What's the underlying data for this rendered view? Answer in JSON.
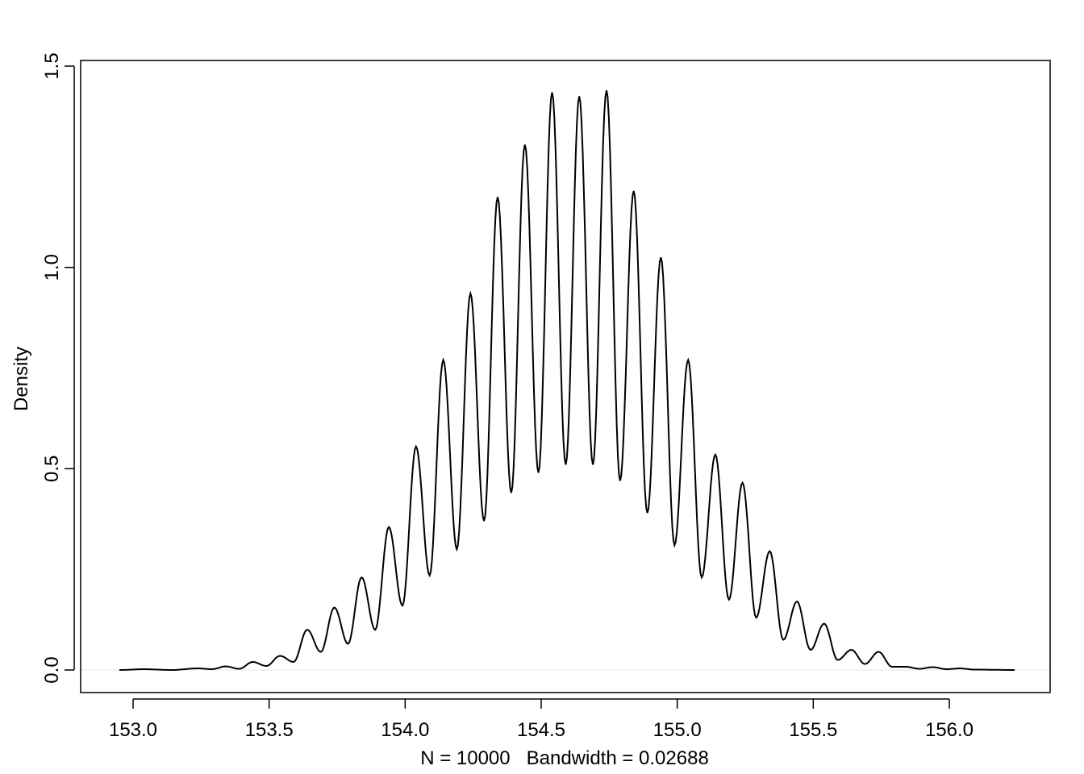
{
  "chart_data": {
    "type": "line",
    "title": "",
    "xlabel": "N = 10000   Bandwidth = 0.02688",
    "ylabel": "Density",
    "xlim": [
      152.85,
      156.35
    ],
    "ylim": [
      -0.06,
      1.52
    ],
    "x_ticks": [
      "153.0",
      "153.5",
      "154.0",
      "154.5",
      "155.0",
      "155.5",
      "156.0"
    ],
    "y_ticks": [
      "0.0",
      "0.5",
      "1.0",
      "1.5"
    ],
    "zero_line": true,
    "grid": false,
    "line_color": "#000000",
    "zero_line_color": "#e6e6e6",
    "series": [
      {
        "points": [
          [
            152.95,
            0.0
          ],
          [
            153.04,
            0.002
          ],
          [
            153.14,
            0.0
          ],
          [
            153.24,
            0.004
          ],
          [
            153.29,
            0.002
          ],
          [
            153.34,
            0.009
          ],
          [
            153.39,
            0.003
          ],
          [
            153.44,
            0.02
          ],
          [
            153.49,
            0.01
          ],
          [
            153.54,
            0.035
          ],
          [
            153.59,
            0.02
          ],
          [
            153.64,
            0.1
          ],
          [
            153.69,
            0.045
          ],
          [
            153.74,
            0.155
          ],
          [
            153.79,
            0.065
          ],
          [
            153.84,
            0.23
          ],
          [
            153.89,
            0.1
          ],
          [
            153.94,
            0.355
          ],
          [
            153.99,
            0.16
          ],
          [
            154.04,
            0.555
          ],
          [
            154.09,
            0.235
          ],
          [
            154.14,
            0.77
          ],
          [
            154.19,
            0.3
          ],
          [
            154.24,
            0.935
          ],
          [
            154.29,
            0.37
          ],
          [
            154.34,
            1.175
          ],
          [
            154.39,
            0.44
          ],
          [
            154.44,
            1.305
          ],
          [
            154.49,
            0.49
          ],
          [
            154.54,
            1.435
          ],
          [
            154.59,
            0.51
          ],
          [
            154.64,
            1.425
          ],
          [
            154.69,
            0.51
          ],
          [
            154.74,
            1.44
          ],
          [
            154.79,
            0.47
          ],
          [
            154.84,
            1.19
          ],
          [
            154.89,
            0.39
          ],
          [
            154.94,
            1.025
          ],
          [
            154.99,
            0.31
          ],
          [
            155.04,
            0.77
          ],
          [
            155.09,
            0.23
          ],
          [
            155.14,
            0.535
          ],
          [
            155.19,
            0.175
          ],
          [
            155.24,
            0.465
          ],
          [
            155.29,
            0.13
          ],
          [
            155.34,
            0.295
          ],
          [
            155.39,
            0.075
          ],
          [
            155.44,
            0.17
          ],
          [
            155.49,
            0.05
          ],
          [
            155.54,
            0.115
          ],
          [
            155.59,
            0.025
          ],
          [
            155.64,
            0.05
          ],
          [
            155.69,
            0.015
          ],
          [
            155.74,
            0.045
          ],
          [
            155.79,
            0.008
          ],
          [
            155.84,
            0.008
          ],
          [
            155.89,
            0.003
          ],
          [
            155.94,
            0.007
          ],
          [
            155.99,
            0.002
          ],
          [
            156.04,
            0.004
          ],
          [
            156.09,
            0.001
          ],
          [
            156.24,
            0.0
          ]
        ]
      }
    ]
  }
}
